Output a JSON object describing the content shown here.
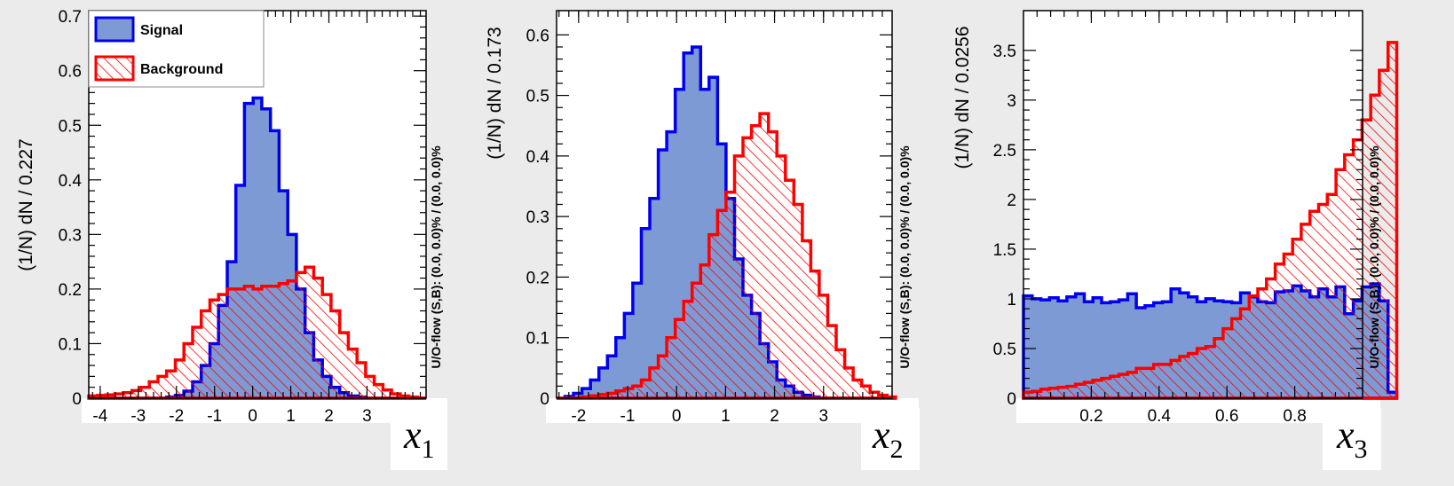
{
  "colors": {
    "signal_fill": "#7d9ad4",
    "signal_line": "#0000ee",
    "background_line": "#ff0000",
    "page_bg": "#ebebeb"
  },
  "legend": {
    "position": "top-left",
    "entries": [
      {
        "name": "Signal",
        "style": "filled"
      },
      {
        "name": "Background",
        "style": "hatched"
      }
    ]
  },
  "chart_data": [
    {
      "type": "histogram",
      "xlabel_main": "x",
      "xlabel_sub": "1",
      "ylabel": "(1/N) dN / 0.227",
      "overflow_label": "U/O-flow (S,B): (0.0, 0.0)% / (0.0, 0.0)%",
      "xlim": [
        -4.3,
        4.55
      ],
      "ylim": [
        0,
        0.71
      ],
      "xticks": [
        -4,
        -3,
        -2,
        -1,
        0,
        1,
        2,
        3
      ],
      "yticks": [
        0,
        0.1,
        0.2,
        0.3,
        0.4,
        0.5,
        0.6,
        0.7
      ],
      "ytick_labels": [
        "0",
        "0.1",
        "0.2",
        "0.3",
        "0.4",
        "0.5",
        "0.6",
        "0.7"
      ],
      "has_legend": true,
      "bin_start": -4.3,
      "bin_width": 0.227,
      "series": [
        {
          "name": "Signal",
          "values": [
            0,
            0,
            0,
            0,
            0,
            0,
            0,
            0,
            0,
            0.002,
            0.005,
            0.013,
            0.03,
            0.06,
            0.1,
            0.17,
            0.25,
            0.39,
            0.54,
            0.55,
            0.53,
            0.49,
            0.38,
            0.3,
            0.2,
            0.12,
            0.07,
            0.04,
            0.02,
            0.01,
            0.004,
            0.002,
            0,
            0,
            0,
            0,
            0,
            0,
            0
          ]
        },
        {
          "name": "Background",
          "values": [
            0.004,
            0.005,
            0.006,
            0.008,
            0.01,
            0.014,
            0.02,
            0.03,
            0.04,
            0.05,
            0.07,
            0.1,
            0.13,
            0.16,
            0.18,
            0.19,
            0.2,
            0.2,
            0.205,
            0.2,
            0.205,
            0.205,
            0.21,
            0.215,
            0.23,
            0.24,
            0.22,
            0.19,
            0.16,
            0.12,
            0.09,
            0.065,
            0.04,
            0.025,
            0.015,
            0.008,
            0.004,
            0.002,
            0
          ]
        }
      ]
    },
    {
      "type": "histogram",
      "xlabel_main": "x",
      "xlabel_sub": "2",
      "ylabel": "(1/N) dN / 0.173",
      "overflow_label": "U/O-flow (S,B): (0.0, 0.0)% / (0.0, 0.0)%",
      "xlim": [
        -2.45,
        4.4
      ],
      "ylim": [
        0,
        0.64
      ],
      "xticks": [
        -2,
        -1,
        0,
        1,
        2,
        3
      ],
      "yticks": [
        0,
        0.1,
        0.2,
        0.3,
        0.4,
        0.5,
        0.6
      ],
      "ytick_labels": [
        "0",
        "0.1",
        "0.2",
        "0.3",
        "0.4",
        "0.5",
        "0.6"
      ],
      "has_legend": false,
      "bin_start": -2.45,
      "bin_width": 0.173,
      "series": [
        {
          "name": "Signal",
          "values": [
            0,
            0.003,
            0.008,
            0.016,
            0.03,
            0.05,
            0.07,
            0.1,
            0.14,
            0.19,
            0.28,
            0.33,
            0.41,
            0.44,
            0.51,
            0.57,
            0.58,
            0.51,
            0.53,
            0.42,
            0.33,
            0.23,
            0.17,
            0.14,
            0.09,
            0.06,
            0.03,
            0.02,
            0.01,
            0.005,
            0.002,
            0,
            0,
            0,
            0,
            0,
            0,
            0,
            0,
            0
          ]
        },
        {
          "name": "Background",
          "values": [
            0,
            0,
            0,
            0.002,
            0.004,
            0.006,
            0.008,
            0.012,
            0.016,
            0.02,
            0.03,
            0.05,
            0.07,
            0.1,
            0.13,
            0.16,
            0.19,
            0.22,
            0.27,
            0.31,
            0.34,
            0.4,
            0.43,
            0.45,
            0.47,
            0.44,
            0.4,
            0.36,
            0.32,
            0.26,
            0.21,
            0.17,
            0.12,
            0.08,
            0.05,
            0.03,
            0.02,
            0.01,
            0.005,
            0.002
          ]
        }
      ]
    },
    {
      "type": "histogram",
      "xlabel_main": "x",
      "xlabel_sub": "3",
      "ylabel": "(1/N) dN / 0.0256",
      "overflow_label": "U/O-flow (S,B): (0.0, 0.0)% / (0.0, 0.0)%",
      "xlim": [
        0.0,
        1.0
      ],
      "ylim": [
        0,
        3.9
      ],
      "xticks": [
        0.2,
        0.4,
        0.6,
        0.8
      ],
      "yticks": [
        0,
        0.5,
        1,
        1.5,
        2,
        2.5,
        3,
        3.5
      ],
      "ytick_labels": [
        "0",
        "0.5",
        "1",
        "1.5",
        "2",
        "2.5",
        "3",
        "3.5"
      ],
      "has_legend": false,
      "bin_start": 0.0,
      "bin_width": 0.0256,
      "series": [
        {
          "name": "Signal",
          "values": [
            1.03,
            1.0,
            0.99,
            1.01,
            0.98,
            1.02,
            1.05,
            0.97,
            1.01,
            0.96,
            0.97,
            0.99,
            1.05,
            0.91,
            0.93,
            0.96,
            0.97,
            1.1,
            1.06,
            1.02,
            0.97,
            1.0,
            0.98,
            0.97,
            0.96,
            1.06,
            1.02,
            0.97,
            0.96,
            1.07,
            1.08,
            1.13,
            1.08,
            1.02,
            1.1,
            1.02,
            1.12,
            0.85,
            0.98,
            1.12,
            1.15,
            0.98,
            0.06
          ]
        },
        {
          "name": "Background",
          "values": [
            0.06,
            0.07,
            0.09,
            0.1,
            0.11,
            0.12,
            0.14,
            0.16,
            0.18,
            0.2,
            0.22,
            0.24,
            0.26,
            0.3,
            0.3,
            0.34,
            0.34,
            0.38,
            0.42,
            0.45,
            0.5,
            0.52,
            0.6,
            0.7,
            0.8,
            0.9,
            1.03,
            1.1,
            1.2,
            1.35,
            1.45,
            1.6,
            1.75,
            1.88,
            1.95,
            2.05,
            2.3,
            2.45,
            2.6,
            2.8,
            3.05,
            3.3,
            3.58
          ]
        }
      ]
    }
  ]
}
